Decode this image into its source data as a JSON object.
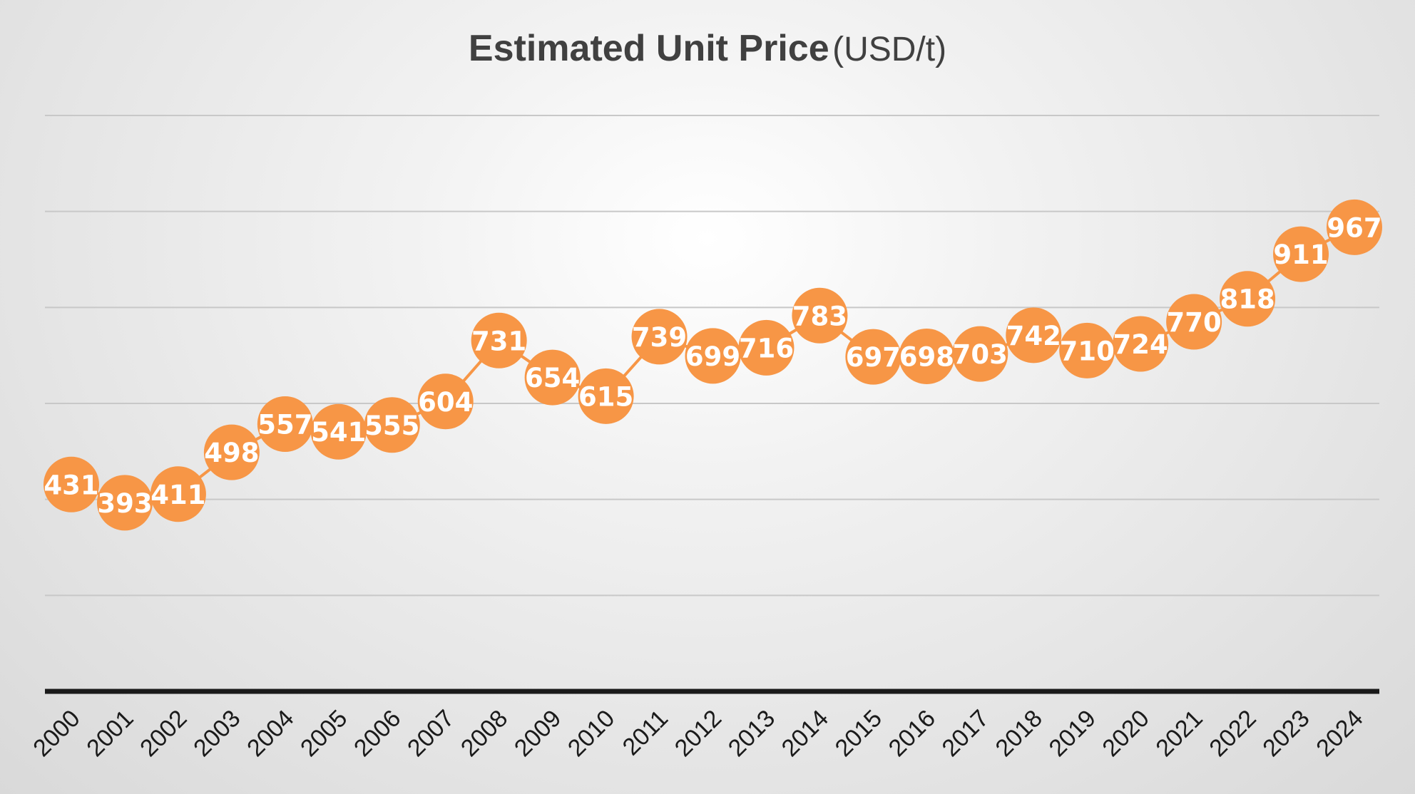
{
  "chart_data": {
    "type": "line",
    "title": "Estimated Unit Price",
    "title_unit": "(USD/t)",
    "xlabel": "",
    "ylabel": "",
    "categories": [
      "2000",
      "2001",
      "2002",
      "2003",
      "2004",
      "2005",
      "2006",
      "2007",
      "2008",
      "2009",
      "2010",
      "2011",
      "2012",
      "2013",
      "2014",
      "2015",
      "2016",
      "2017",
      "2018",
      "2019",
      "2020",
      "2021",
      "2022",
      "2023",
      "2024"
    ],
    "series": [
      {
        "values": [
          431,
          393,
          411,
          498,
          557,
          541,
          555,
          604,
          731,
          654,
          615,
          739,
          699,
          716,
          783,
          697,
          698,
          703,
          742,
          710,
          724,
          770,
          818,
          911,
          967
        ]
      }
    ],
    "ylim": [
      0,
      1200
    ],
    "ytick_step": 200,
    "y_tick_labels_shown": false,
    "grid": true,
    "legend": "none",
    "data_labels": true,
    "marker": "circle",
    "colors": {
      "series": "#f79646",
      "label_text": "#ffffff",
      "grid": "#c8c8c8",
      "axis": "#1a1a1a",
      "title": "#404040"
    }
  }
}
